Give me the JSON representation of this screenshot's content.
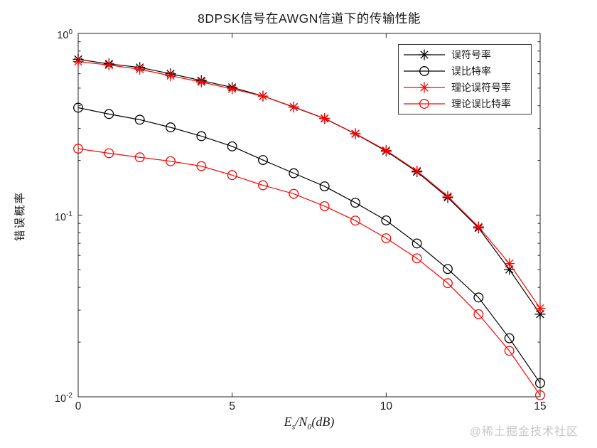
{
  "watermark": "@稀土掘金技术社区",
  "xlabel_parts": {
    "E": "E",
    "s": "s",
    "slashN": "/N",
    "zero": "0",
    "db": "(dB)"
  },
  "chart_data": {
    "type": "line",
    "title": "8DPSK信号在AWGN信道下的传输性能",
    "xlabel": "Es/N0(dB)",
    "ylabel": "错误概率",
    "xlim": [
      0,
      15
    ],
    "ylim": [
      0.01,
      1
    ],
    "yscale": "log",
    "x_ticks": [
      0,
      5,
      10,
      15
    ],
    "y_tick_exponents": [
      0,
      -1,
      -2
    ],
    "grid": false,
    "legend_position": "top-right-inside",
    "x": [
      0,
      1,
      2,
      3,
      4,
      5,
      6,
      7,
      8,
      9,
      10,
      11,
      12,
      13,
      14,
      15
    ],
    "series": [
      {
        "name": "误符号率",
        "color": "#000000",
        "marker": "asterisk",
        "values": [
          0.72,
          0.68,
          0.65,
          0.6,
          0.55,
          0.505,
          0.452,
          0.393,
          0.34,
          0.28,
          0.225,
          0.173,
          0.125,
          0.085,
          0.0502,
          0.0285
        ]
      },
      {
        "name": "误比特率",
        "color": "#000000",
        "marker": "circle",
        "values": [
          0.39,
          0.36,
          0.335,
          0.304,
          0.272,
          0.239,
          0.201,
          0.17,
          0.144,
          0.117,
          0.0935,
          0.0698,
          0.0505,
          0.0352,
          0.021,
          0.0119
        ]
      },
      {
        "name": "理论误符号率",
        "color": "#ff0000",
        "marker": "asterisk",
        "values": [
          0.7,
          0.67,
          0.635,
          0.585,
          0.54,
          0.495,
          0.452,
          0.394,
          0.341,
          0.281,
          0.227,
          0.175,
          0.127,
          0.0862,
          0.0541,
          0.0307
        ]
      },
      {
        "name": "理论误比特率",
        "color": "#ff0000",
        "marker": "circle",
        "values": [
          0.232,
          0.219,
          0.208,
          0.198,
          0.186,
          0.166,
          0.146,
          0.131,
          0.112,
          0.0933,
          0.0746,
          0.0578,
          0.0422,
          0.0285,
          0.0179,
          0.0102
        ]
      }
    ]
  }
}
